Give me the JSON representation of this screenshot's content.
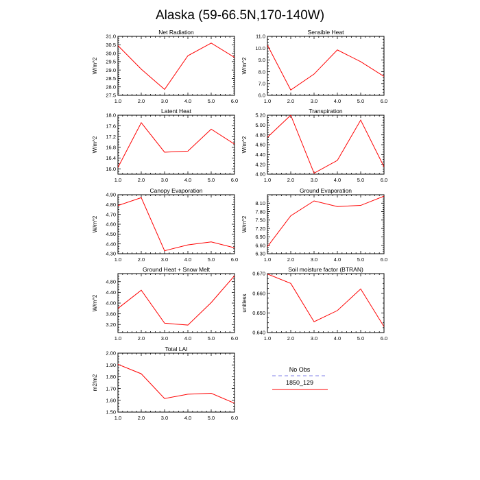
{
  "title": "Alaska (59-66.5N,170-140W)",
  "line_color": "#ff0000",
  "legend": {
    "entries": [
      {
        "label": "No Obs",
        "color": "#9999ee",
        "style": "dashed"
      },
      {
        "label": "1850_129",
        "color": "#ff0000",
        "style": "solid"
      }
    ]
  },
  "chart_data": [
    {
      "type": "line",
      "title": "Net Radiation",
      "ylabel": "W/m^2",
      "x": [
        1,
        2,
        3,
        4,
        5,
        6
      ],
      "xlim": [
        1,
        6
      ],
      "ylim": [
        27.5,
        31.0
      ],
      "xticks": [
        "1.0",
        "2.0",
        "3.0",
        "4.0",
        "5.0",
        "6.0"
      ],
      "yticks": [
        "27.5",
        "28.0",
        "28.5",
        "29.0",
        "29.5",
        "30.0",
        "30.5",
        "31.0"
      ],
      "series": [
        {
          "name": "1850_129",
          "values": [
            30.45,
            29.05,
            27.85,
            29.85,
            30.6,
            29.75
          ]
        }
      ]
    },
    {
      "type": "line",
      "title": "Sensible Heat",
      "ylabel": "W/m^2",
      "x": [
        1,
        2,
        3,
        4,
        5,
        6
      ],
      "xlim": [
        1,
        6
      ],
      "ylim": [
        6.0,
        11.0
      ],
      "xticks": [
        "1.0",
        "2.0",
        "3.0",
        "4.0",
        "5.0",
        "6.0"
      ],
      "yticks": [
        "6.0",
        "7.0",
        "8.0",
        "9.0",
        "10.0",
        "11.0"
      ],
      "series": [
        {
          "name": "1850_129",
          "values": [
            10.25,
            6.45,
            7.8,
            9.85,
            8.85,
            7.6
          ]
        }
      ]
    },
    {
      "type": "line",
      "title": "Latent Heat",
      "ylabel": "W/m^2",
      "x": [
        1,
        2,
        3,
        4,
        5,
        6
      ],
      "xlim": [
        1,
        6
      ],
      "ylim": [
        15.8,
        18.0
      ],
      "xticks": [
        "1.0",
        "2.0",
        "3.0",
        "4.0",
        "5.0",
        "6.0"
      ],
      "yticks": [
        "16.0",
        "16.4",
        "16.8",
        "17.2",
        "17.6",
        "18.0"
      ],
      "series": [
        {
          "name": "1850_129",
          "values": [
            16.05,
            17.72,
            16.62,
            16.66,
            17.48,
            16.92
          ]
        }
      ]
    },
    {
      "type": "line",
      "title": "Transpiration",
      "ylabel": "W/m^2",
      "x": [
        1,
        2,
        3,
        4,
        5,
        6
      ],
      "xlim": [
        1,
        6
      ],
      "ylim": [
        4.0,
        5.2
      ],
      "xticks": [
        "1.0",
        "2.0",
        "3.0",
        "4.0",
        "5.0",
        "6.0"
      ],
      "yticks": [
        "4.00",
        "4.20",
        "4.40",
        "4.60",
        "4.80",
        "5.00",
        "5.20"
      ],
      "series": [
        {
          "name": "1850_129",
          "values": [
            4.75,
            5.2,
            4.02,
            4.28,
            5.1,
            4.15
          ]
        }
      ]
    },
    {
      "type": "line",
      "title": "Canopy Evaporation",
      "ylabel": "W/m^2",
      "x": [
        1,
        2,
        3,
        4,
        5,
        6
      ],
      "xlim": [
        1,
        6
      ],
      "ylim": [
        4.3,
        4.9
      ],
      "xticks": [
        "1.0",
        "2.0",
        "3.0",
        "4.0",
        "5.0",
        "6.0"
      ],
      "yticks": [
        "4.30",
        "4.40",
        "4.50",
        "4.60",
        "4.70",
        "4.80",
        "4.90"
      ],
      "series": [
        {
          "name": "1850_129",
          "values": [
            4.79,
            4.87,
            4.33,
            4.39,
            4.42,
            4.36
          ]
        }
      ]
    },
    {
      "type": "line",
      "title": "Ground Evaporation",
      "ylabel": "W/m^2",
      "x": [
        1,
        2,
        3,
        4,
        5,
        6
      ],
      "xlim": [
        1,
        6
      ],
      "ylim": [
        6.3,
        8.4
      ],
      "xticks": [
        "1.0",
        "2.0",
        "3.0",
        "4.0",
        "5.0",
        "6.0"
      ],
      "yticks": [
        "6.30",
        "6.60",
        "6.90",
        "7.20",
        "7.50",
        "7.80",
        "8.10"
      ],
      "series": [
        {
          "name": "1850_129",
          "values": [
            6.55,
            7.65,
            8.18,
            7.98,
            8.02,
            8.35
          ]
        }
      ]
    },
    {
      "type": "line",
      "title": "Ground Heat + Snow Melt",
      "ylabel": "W/m^2",
      "x": [
        1,
        2,
        3,
        4,
        5,
        6
      ],
      "xlim": [
        1,
        6
      ],
      "ylim": [
        2.9,
        5.1
      ],
      "xticks": [
        "1.0",
        "2.0",
        "3.0",
        "4.0",
        "5.0",
        "6.0"
      ],
      "yticks": [
        "3.20",
        "3.60",
        "4.00",
        "4.40",
        "4.80"
      ],
      "series": [
        {
          "name": "1850_129",
          "values": [
            3.8,
            4.48,
            3.25,
            3.18,
            4.02,
            5.02
          ]
        }
      ]
    },
    {
      "type": "line",
      "title": "Soil moisture factor (BTRAN)",
      "ylabel": "unitless",
      "x": [
        1,
        2,
        3,
        4,
        5,
        6
      ],
      "xlim": [
        1,
        6
      ],
      "ylim": [
        0.64,
        0.67
      ],
      "xticks": [
        "1.0",
        "2.0",
        "3.0",
        "4.0",
        "5.0",
        "6.0"
      ],
      "yticks": [
        "0.640",
        "0.650",
        "0.660",
        "0.670"
      ],
      "series": [
        {
          "name": "1850_129",
          "values": [
            0.6698,
            0.665,
            0.6455,
            0.6512,
            0.6622,
            0.643
          ]
        }
      ]
    },
    {
      "type": "line",
      "title": "Total LAI",
      "ylabel": "m2/m2",
      "x": [
        1,
        2,
        3,
        4,
        5,
        6
      ],
      "xlim": [
        1,
        6
      ],
      "ylim": [
        1.5,
        2.0
      ],
      "xticks": [
        "1.0",
        "2.0",
        "3.0",
        "4.0",
        "5.0",
        "6.0"
      ],
      "yticks": [
        "1.50",
        "1.60",
        "1.70",
        "1.80",
        "1.90",
        "2.00"
      ],
      "series": [
        {
          "name": "1850_129",
          "values": [
            1.905,
            1.825,
            1.615,
            1.652,
            1.66,
            1.575
          ]
        }
      ]
    }
  ]
}
